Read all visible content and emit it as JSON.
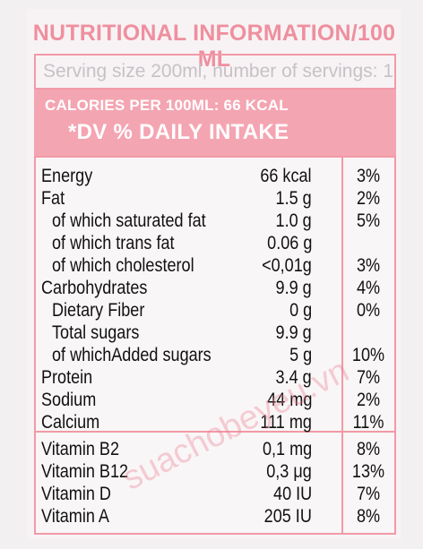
{
  "title": "NUTRITIONAL INFORMATION/100 ML",
  "serving": "Serving size 200ml, number of servings: 1.",
  "calories": "CALORIES PER 100ML: 66 KCAL",
  "dv_heading": "*DV % DAILY INTAKE",
  "watermark": "suachobeyeu.vn",
  "rows": [
    {
      "name": "Energy",
      "amount": "66 kcal",
      "pct": "3%"
    },
    {
      "name": "Fat",
      "amount": "1.5 g",
      "pct": "2%"
    },
    {
      "name": "of which saturated fat",
      "amount": "1.0 g",
      "pct": "5%"
    },
    {
      "name": "of which trans fat",
      "amount": "0.06 g",
      "pct": ""
    },
    {
      "name": "of which cholesterol",
      "amount": "<0,01g",
      "pct": "3%"
    },
    {
      "name": "Carbohydrates",
      "amount": "9.9 g",
      "pct": "4%"
    },
    {
      "name": "Dietary Fiber",
      "amount": "0 g",
      "pct": "0%"
    },
    {
      "name": "Total sugars",
      "amount": "9.9 g",
      "pct": ""
    },
    {
      "name": "of whichAdded sugars",
      "amount": "5 g",
      "pct": "10%"
    },
    {
      "name": "Protein",
      "amount": "3.4 g",
      "pct": "7%"
    },
    {
      "name": "Sodium",
      "amount": "44 mg",
      "pct": "2%"
    },
    {
      "name": "Calcium",
      "amount": "111 mg",
      "pct": "11%"
    },
    {
      "name": "Vitamin B2",
      "amount": "0,1 mg",
      "pct": "8%"
    },
    {
      "name": "Vitamin B12",
      "amount": "0,3 μg",
      "pct": "13%"
    },
    {
      "name": "Vitamin D",
      "amount": "40 IU",
      "pct": "7%"
    },
    {
      "name": "Vitamin A",
      "amount": "205 IU",
      "pct": "8%"
    }
  ]
}
